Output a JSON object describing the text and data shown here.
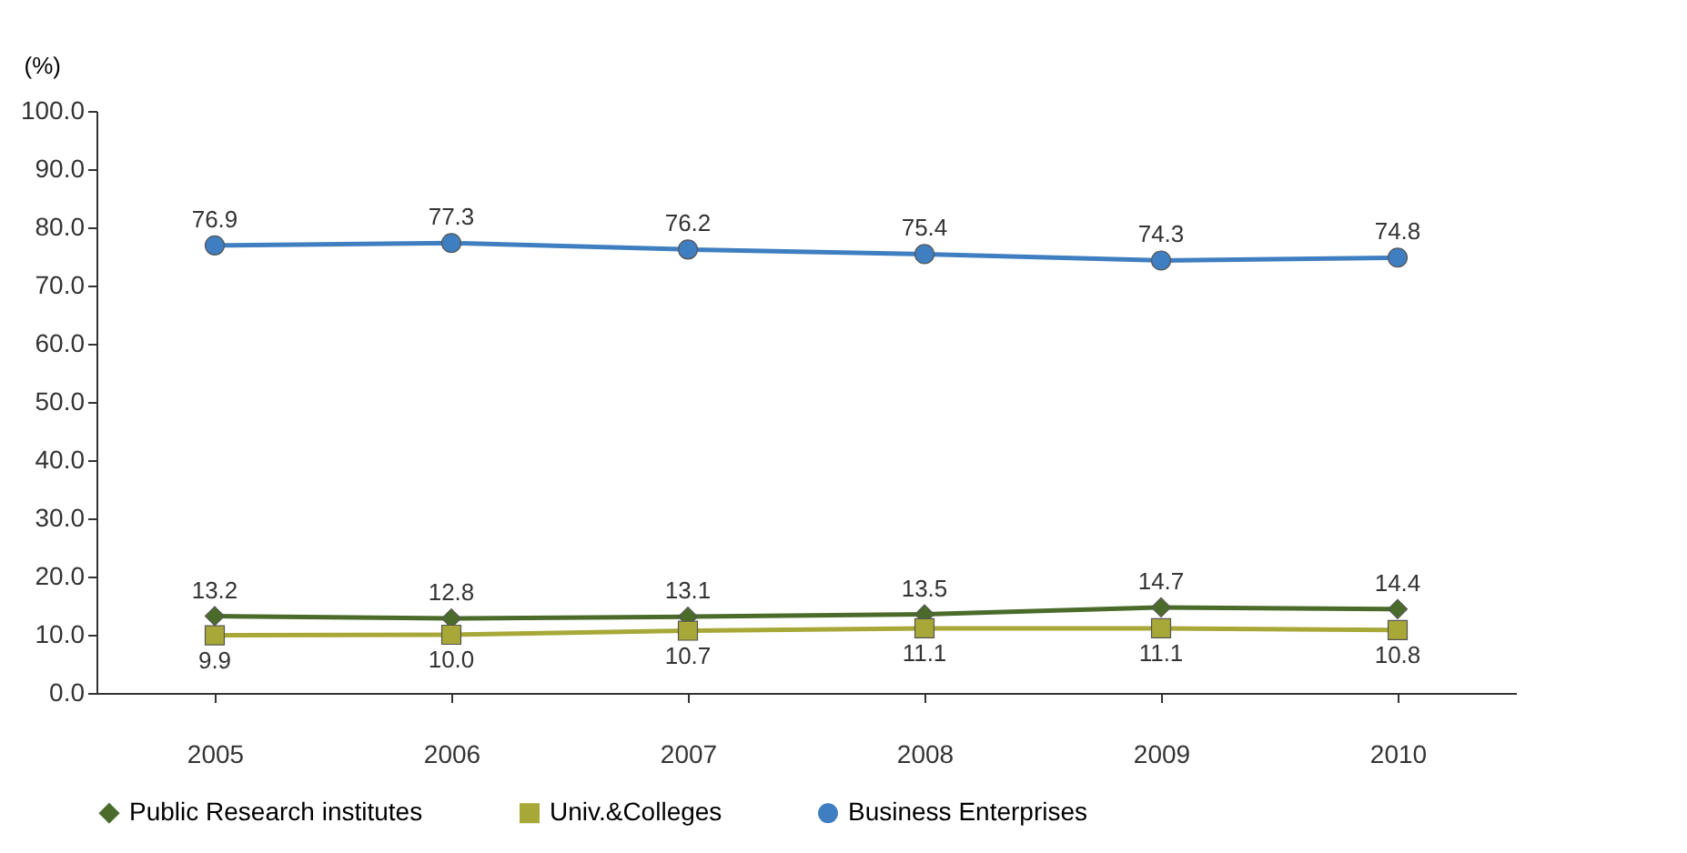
{
  "chart_data": {
    "type": "line",
    "ylabel": "(%)",
    "categories": [
      "2005",
      "2006",
      "2007",
      "2008",
      "2009",
      "2010"
    ],
    "series": [
      {
        "name": "Public Research institutes",
        "color": "#4a6b2a",
        "marker": "diamond",
        "values": [
          13.2,
          12.8,
          13.1,
          13.5,
          14.7,
          14.4
        ]
      },
      {
        "name": "Univ.&Colleges",
        "color": "#a8a838",
        "marker": "square",
        "values": [
          9.9,
          10.0,
          10.7,
          11.1,
          11.1,
          10.8
        ],
        "value_labels": [
          "9.9",
          "10.0",
          "10.7",
          "11.1",
          "11.1",
          "10.8"
        ]
      },
      {
        "name": "Business Enterprises",
        "color": "#3f7fc1",
        "marker": "circle",
        "values": [
          76.9,
          77.3,
          76.2,
          75.4,
          74.3,
          74.8
        ]
      }
    ],
    "ylim": [
      0,
      100
    ],
    "yticks": [
      {
        "value": 0,
        "label": "0.0"
      },
      {
        "value": 10,
        "label": "10.0"
      },
      {
        "value": 20,
        "label": "20.0"
      },
      {
        "value": 30,
        "label": "30.0"
      },
      {
        "value": 40,
        "label": "40.0"
      },
      {
        "value": 50,
        "label": "50.0"
      },
      {
        "value": 60,
        "label": "60.0"
      },
      {
        "value": 70,
        "label": "70.0"
      },
      {
        "value": 80,
        "label": "80.0"
      },
      {
        "value": 90,
        "label": "90.0"
      },
      {
        "value": 100,
        "label": "100.0"
      }
    ],
    "data_labels": true,
    "legend": "bottom",
    "grid": false,
    "line_style": "solid"
  }
}
